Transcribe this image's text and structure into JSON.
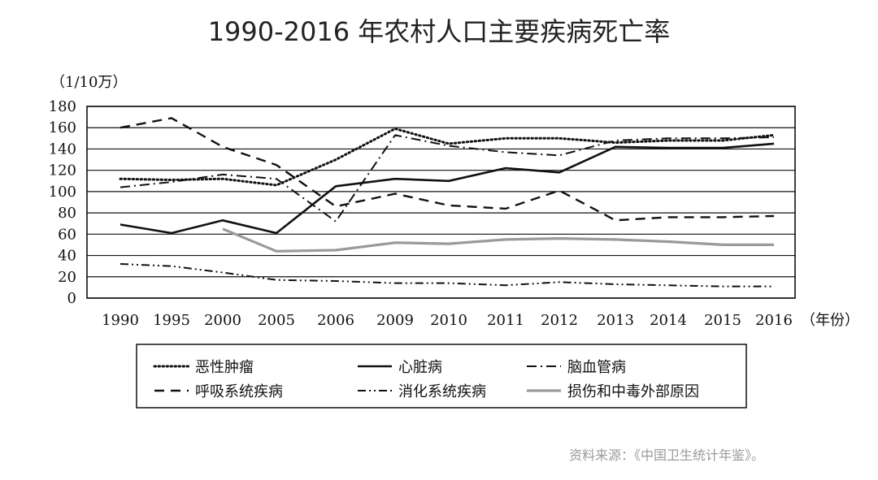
{
  "chart_data": {
    "type": "line",
    "title": "1990-2016 年农村人口主要疾病死亡率",
    "y_unit": "（1/10万）",
    "x_unit": "（年份）",
    "categories": [
      "1990",
      "1995",
      "2000",
      "2005",
      "2006",
      "2009",
      "2010",
      "2011",
      "2012",
      "2013",
      "2014",
      "2015",
      "2016"
    ],
    "y_ticks": [
      "0",
      "20",
      "40",
      "60",
      "80",
      "100",
      "120",
      "140",
      "160",
      "180"
    ],
    "ylim": [
      0,
      180
    ],
    "grid": true,
    "legend_position": "bottom",
    "series": [
      {
        "key": "malignant",
        "name": "恶性肿瘤",
        "style": "dotted",
        "values": [
          112,
          111,
          112,
          106,
          130,
          159,
          145,
          150,
          150,
          146,
          148,
          148,
          153
        ]
      },
      {
        "key": "heart",
        "name": "心脏病",
        "style": "solid",
        "values": [
          69,
          61,
          73,
          61,
          105,
          112,
          110,
          122,
          118,
          142,
          141,
          141,
          145
        ]
      },
      {
        "key": "cerebro",
        "name": "脑血管病",
        "style": "dashdot",
        "values": [
          104,
          109,
          116,
          112,
          72,
          153,
          143,
          137,
          134,
          148,
          150,
          150,
          151
        ]
      },
      {
        "key": "respiratory",
        "name": "呼吸系统疾病",
        "style": "dashed",
        "values": [
          160,
          169,
          142,
          125,
          86,
          98,
          87,
          84,
          101,
          73,
          76,
          76,
          77
        ]
      },
      {
        "key": "digestive",
        "name": "消化系统疾病",
        "style": "dashdotdot",
        "values": [
          32,
          30,
          24,
          17,
          16,
          14,
          14,
          12,
          15,
          13,
          12,
          11,
          11
        ]
      },
      {
        "key": "injury",
        "name": "损伤和中毒外部原因",
        "style": "gray",
        "values": [
          null,
          null,
          65,
          44,
          45,
          52,
          51,
          55,
          56,
          55,
          53,
          50,
          50
        ]
      }
    ]
  },
  "source": "资料来源：《中国卫生统计年鉴》。"
}
